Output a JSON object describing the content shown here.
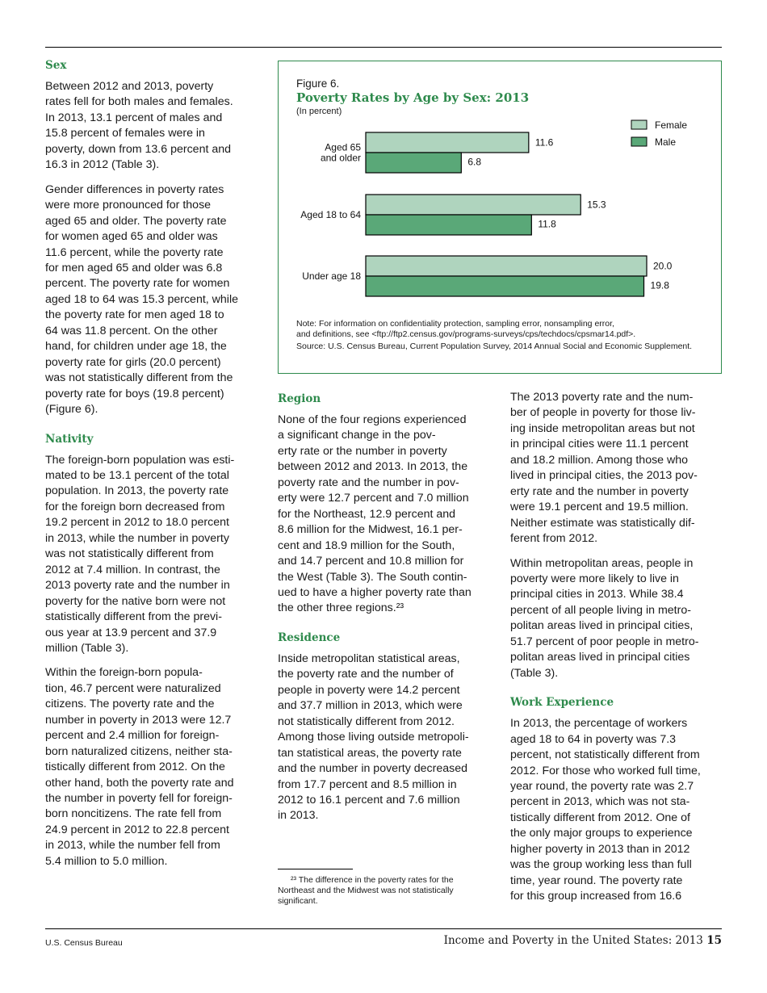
{
  "left_column": {
    "sections": [
      {
        "heading": "Sex",
        "paragraphs": [
          [
            "Between 2012 and 2013, poverty",
            "rates fell for both males and females.",
            "In 2013, 13.1 percent of males and",
            "15.8 percent of females were in",
            "poverty, down from 13.6 percent and",
            "16.3 in 2012 (Table 3)."
          ],
          [
            "Gender differences in poverty rates",
            "were more pronounced for those",
            "aged 65 and older. The poverty rate",
            "for women aged 65 and older was",
            "11.6 percent, while the poverty rate",
            "for men aged 65 and older was 6.8",
            "percent. The poverty rate for women",
            "aged 18 to 64 was 15.3 percent, while",
            "the poverty rate for men aged 18 to",
            "64 was 11.8 percent. On the other",
            "hand, for children under age 18, the",
            "poverty rate for girls (20.0 percent)",
            "was not statistically different from the",
            "poverty rate for boys (19.8 percent)",
            "(Figure 6)."
          ]
        ]
      },
      {
        "heading": "Nativity",
        "paragraphs": [
          [
            "The foreign-born population was esti-",
            "mated to be 13.1 percent of the total",
            "population. In 2013, the poverty rate",
            "for the foreign born decreased from",
            "19.2 percent in 2012 to 18.0 percent",
            "in 2013, while the number in poverty",
            "was not statistically different from",
            "2012 at 7.4 million. In contrast, the",
            "2013 poverty rate and the number in",
            "poverty for the native born were not",
            "statistically different from the previ-",
            "ous year at 13.9 percent and 37.9",
            "million (Table 3)."
          ],
          [
            "Within the foreign-born popula-",
            "tion, 46.7 percent were naturalized",
            "citizens. The poverty rate and the",
            "number in poverty in 2013 were 12.7",
            "percent and 2.4 million for foreign-",
            "born naturalized citizens, neither sta-",
            "tistically different from 2012. On the",
            "other hand, both the poverty rate and",
            "the number in poverty fell for foreign-",
            "born noncitizens. The rate fell from",
            "24.9 percent in 2012 to 22.8 percent",
            "in 2013, while the number fell from",
            "5.4 million to 5.0 million."
          ]
        ]
      }
    ]
  },
  "middle_column": {
    "sections": [
      {
        "heading": "Region",
        "paragraphs": [
          [
            "None of the four regions experienced",
            "a significant change in the pov-",
            "erty rate or the number in poverty",
            "between 2012 and 2013. In 2013, the",
            "poverty rate and the number in pov-",
            "erty were 12.7 percent and 7.0 million",
            "for the Northeast, 12.9 percent and",
            "8.6 million for the Midwest, 16.1 per-",
            "cent and 18.9 million for the South,",
            "and 14.7 percent and 10.8 million for",
            "the West (Table 3). The South contin-",
            "ued to have a higher poverty rate than",
            "the other three regions.²³"
          ]
        ]
      },
      {
        "heading": "Residence",
        "paragraphs": [
          [
            "Inside metropolitan statistical areas,",
            "the poverty rate and the number of",
            "people in poverty were 14.2 percent",
            "and 37.7 million in 2013, which were",
            "not statistically different from 2012.",
            "Among those living outside metropoli-",
            "tan statistical areas, the poverty rate",
            "and the number in poverty decreased",
            "from 17.7 percent and 8.5 million in",
            "2012 to 16.1 percent and 7.6 million",
            "in 2013."
          ]
        ]
      }
    ],
    "footnote": [
      "²³ The difference in the poverty rates for the",
      "Northeast and the Midwest was not statistically",
      "significant."
    ]
  },
  "right_column": {
    "sections": [
      {
        "heading": "",
        "paragraphs": [
          [
            "The 2013 poverty rate and the num-",
            "ber of people in poverty for those liv-",
            "ing inside metropolitan areas but not",
            "in principal cities were 11.1 percent",
            "and 18.2 million. Among those who",
            "lived in principal cities, the 2013 pov-",
            "erty rate and the number in poverty",
            "were 19.1 percent and 19.5 million.",
            "Neither estimate was statistically dif-",
            "ferent from 2012."
          ],
          [
            "Within metropolitan areas, people in",
            "poverty were more likely to live in",
            "principal cities in 2013. While 38.4",
            "percent of all people living in metro-",
            "politan areas lived in principal cities,",
            "51.7 percent of poor people in metro-",
            "politan areas lived in principal cities",
            "(Table 3)."
          ]
        ]
      },
      {
        "heading": "Work Experience",
        "paragraphs": [
          [
            "In 2013, the percentage of workers",
            "aged 18 to 64 in poverty was 7.3",
            "percent, not statistically different from",
            "2012. For those who worked full time,",
            "year round, the poverty rate was 2.7",
            "percent in 2013, which was not sta-",
            "tistically different from 2012. One of",
            "the only major groups to experience",
            "higher poverty in 2013 than in 2012",
            "was the group working less than full",
            "time, year round. The poverty rate",
            "for this group increased from 16.6"
          ]
        ]
      }
    ]
  },
  "figure": {
    "label": "Figure 6.",
    "title": "Poverty Rates by Age by Sex: 2013",
    "unit": "(In percent)",
    "note1": "Note: For information on confidentiality protection, sampling error, nonsampling error,",
    "note2": "and definitions, see <ftp://ftp2.census.gov/programs-surveys/cps/techdocs/cpsmar14.pdf>.",
    "source": "Source: U.S. Census Bureau, Current Population Survey, 2014 Annual Social and Economic Supplement."
  },
  "chart_data": {
    "type": "bar",
    "orientation": "horizontal",
    "title": "Poverty Rates by Age by Sex: 2013",
    "ylabel": "(In percent)",
    "categories": [
      [
        "Aged 65",
        "and older"
      ],
      [
        "Aged 18 to 64"
      ],
      [
        "Under age 18"
      ]
    ],
    "series": [
      {
        "name": "Female",
        "values": [
          11.6,
          15.3,
          20.0
        ],
        "color": "#afd4be"
      },
      {
        "name": "Male",
        "values": [
          6.8,
          11.8,
          19.8
        ],
        "color": "#5aa878"
      }
    ],
    "xlim": [
      0,
      20
    ],
    "legend": "top-right",
    "grid": false
  },
  "footer": {
    "left": "U.S. Census Bureau",
    "right": "Income and Poverty in the United States: 2013",
    "page": "15"
  }
}
